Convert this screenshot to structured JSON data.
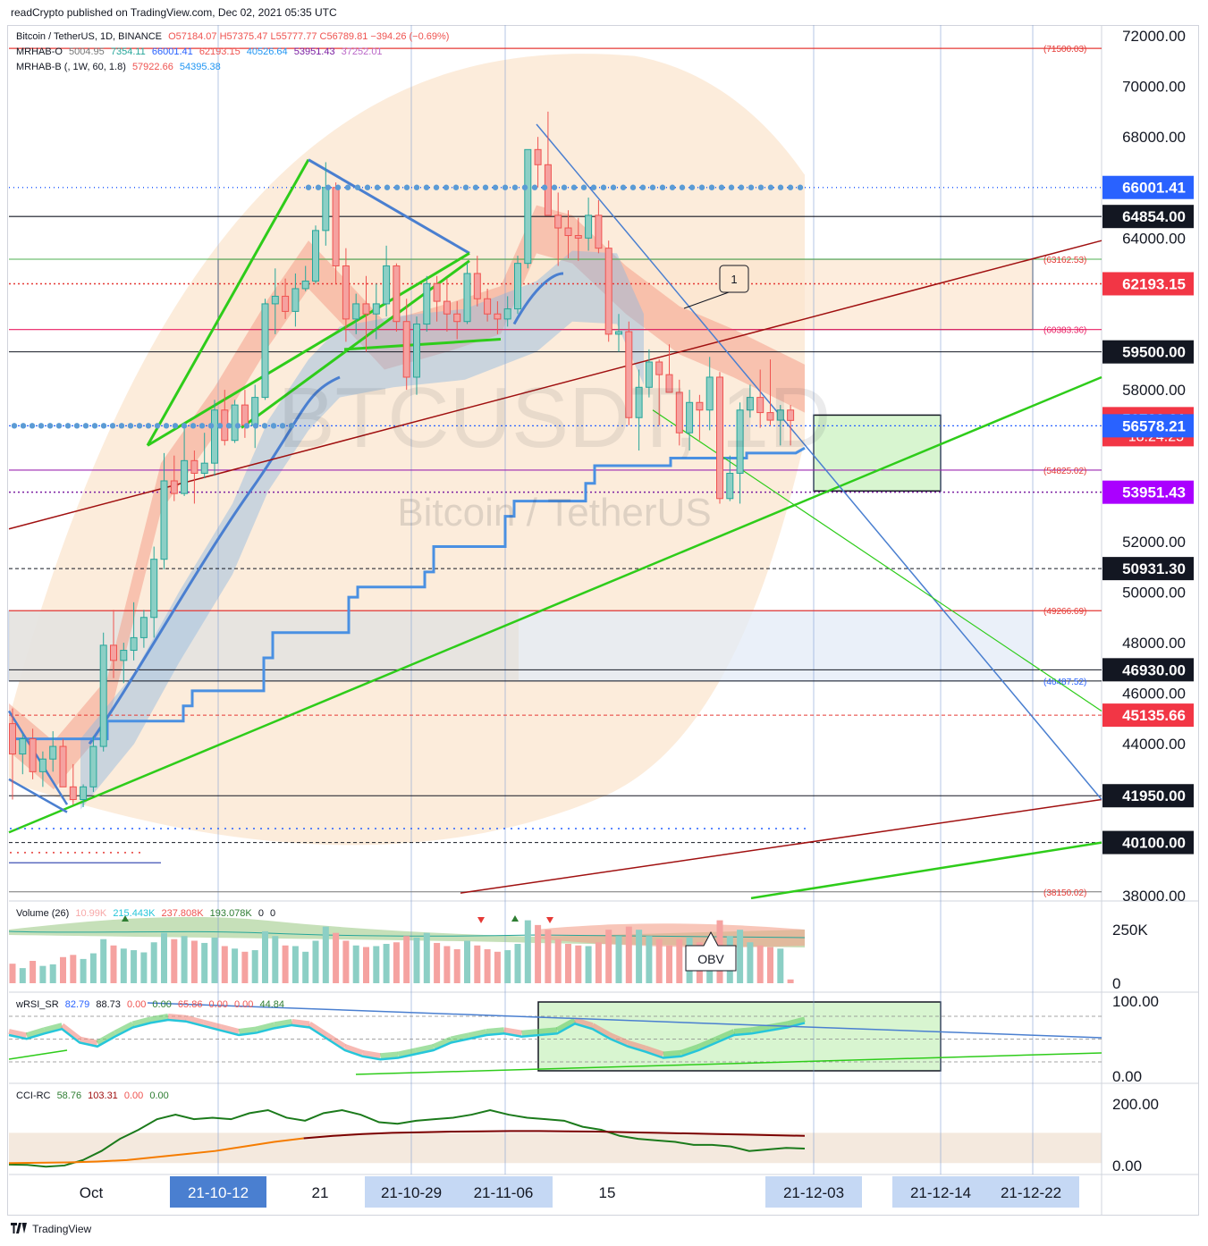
{
  "header": {
    "publisher": "readCrypto published on TradingView.com, Dec 02, 2021 05:35 UTC"
  },
  "footer": {
    "brand": "TradingView"
  },
  "watermark": {
    "ticker": "BTCUSDT, 1D",
    "name": "Bitcoin / TetherUS"
  },
  "legend": {
    "symbol": "Bitcoin / TetherUS, 1D, BINANCE",
    "ohlc": "O57184.07  H57375.47  L55777.77  C56789.81  −394.26 (−0.69%)",
    "mrhab_o_label": "MRHAB-O",
    "mrhab_o_values": [
      "5004.95",
      "7354.11",
      "66001.41",
      "62193.15",
      "40526.64",
      "53951.43",
      "37252.01"
    ],
    "mrhab_b_label": "MRHAB-B (, 1W, 60, 1.8)",
    "mrhab_b_values": [
      "57922.66",
      "54395.38"
    ],
    "volume_label": "Volume (26)",
    "volume_values": [
      "10.99K",
      "215.443K",
      "237.808K",
      "193.078K",
      "0",
      "0"
    ],
    "wrsi_label": "wRSI_SR",
    "wrsi_values": [
      "82.79",
      "88.73",
      "0.00",
      "0.00",
      "65.86",
      "0.00",
      "0.00",
      "44.84"
    ],
    "cci_label": "CCI-RC",
    "cci_values": [
      "58.76",
      "103.31",
      "0.00",
      "0.00"
    ]
  },
  "annotations": {
    "callout_1": "1",
    "callout_obv": "OBV"
  },
  "colors": {
    "up": "#26a69a",
    "down": "#ef5350",
    "green_line": "#2ecc1a",
    "blue_line": "#4a7fd0",
    "dark_red": "#a01010",
    "purple": "#9c27b0",
    "red_tag": "#f23645",
    "dark_tag": "#131722"
  },
  "chart_data": [
    {
      "type": "candlestick",
      "title": "Bitcoin / TetherUS, 1D, BINANCE",
      "y_axis_ticks": [
        72000,
        70000,
        68000,
        64000,
        58000,
        52000,
        50000,
        48000,
        46000,
        44000,
        38000
      ],
      "y_axis_labels": [
        "72000.00",
        "70000.00",
        "68000.00",
        "64000.00",
        "58000.00",
        "52000.00",
        "50000.00",
        "48000.00",
        "46000.00",
        "44000.00",
        "38000.00"
      ],
      "ylim": [
        37900,
        72300
      ],
      "x_axis_labels": [
        "Oct",
        "21-10-12",
        "21",
        "21-10-29",
        "21-11-06",
        "15",
        "21-12-03",
        "21-12-14",
        "21-12-22"
      ],
      "x_axis_highlighted": [
        "21-10-12",
        "21-10-29",
        "21-11-06",
        "21-12-03",
        "21-12-14",
        "21-12-22"
      ],
      "price_tags": [
        {
          "value": 66001.41,
          "label": "66001.41",
          "style": "blue"
        },
        {
          "value": 64854.0,
          "label": "64854.00",
          "style": "dark"
        },
        {
          "value": 62193.15,
          "label": "62193.15",
          "style": "red"
        },
        {
          "value": 59500.0,
          "label": "59500.00",
          "style": "dark"
        },
        {
          "value": 56789.81,
          "label": "56789.81",
          "sub": "18:24:25",
          "style": "red"
        },
        {
          "value": 56578.21,
          "label": "56578.21",
          "style": "blue"
        },
        {
          "value": 53951.43,
          "label": "53951.43",
          "style": "purple"
        },
        {
          "value": 50931.3,
          "label": "50931.30",
          "style": "dark"
        },
        {
          "value": 46930.0,
          "label": "46930.00",
          "style": "dark"
        },
        {
          "value": 45135.66,
          "label": "45135.66",
          "style": "red"
        },
        {
          "value": 41950.0,
          "label": "41950.00",
          "style": "dark"
        },
        {
          "value": 40100.0,
          "label": "40100.00",
          "style": "dark"
        }
      ],
      "level_labels": [
        {
          "value": 71500.03,
          "label": "(71500.03)"
        },
        {
          "value": 63162.53,
          "label": "(63162.53)"
        },
        {
          "value": 60383.36,
          "label": "(60383.36)"
        },
        {
          "value": 54825.02,
          "label": "(54825.02)"
        },
        {
          "value": 49266.69,
          "label": "(49266.69)"
        },
        {
          "value": 46487.52,
          "label": "(46487.52)"
        },
        {
          "value": 38150.02,
          "label": "(38150.02)"
        }
      ],
      "candles": [
        [
          44800,
          45400,
          41800,
          43600
        ],
        [
          43600,
          44400,
          42800,
          44200
        ],
        [
          44200,
          44600,
          42600,
          42900
        ],
        [
          42900,
          43700,
          42300,
          43400
        ],
        [
          43400,
          44500,
          42900,
          43900
        ],
        [
          43900,
          44200,
          42300,
          42300
        ],
        [
          42300,
          43200,
          41600,
          41800
        ],
        [
          41800,
          42400,
          41500,
          42300
        ],
        [
          42300,
          44300,
          42100,
          43900
        ],
        [
          43900,
          48400,
          43700,
          47900
        ],
        [
          47900,
          49300,
          46600,
          47300
        ],
        [
          47300,
          48000,
          46400,
          47700
        ],
        [
          47700,
          49600,
          47300,
          48200
        ],
        [
          48200,
          49300,
          47800,
          49000
        ],
        [
          49000,
          51800,
          48200,
          51300
        ],
        [
          51300,
          55500,
          50900,
          54400
        ],
        [
          54400,
          55400,
          53600,
          53900
        ],
        [
          53900,
          56600,
          53800,
          55200
        ],
        [
          55200,
          55600,
          53500,
          54700
        ],
        [
          54700,
          56300,
          54500,
          55100
        ],
        [
          55100,
          57600,
          54600,
          57200
        ],
        [
          57200,
          58000,
          55800,
          56000
        ],
        [
          56000,
          57600,
          55900,
          57400
        ],
        [
          57400,
          58000,
          56100,
          56600
        ],
        [
          56600,
          58200,
          55700,
          57700
        ],
        [
          57700,
          61600,
          57600,
          61400
        ],
        [
          61400,
          62800,
          60200,
          61700
        ],
        [
          61700,
          62400,
          60800,
          61100
        ],
        [
          61100,
          62600,
          60500,
          62000
        ],
        [
          62000,
          62900,
          61900,
          62300
        ],
        [
          62300,
          64500,
          62200,
          64300
        ],
        [
          64300,
          67000,
          63700,
          66000
        ],
        [
          66000,
          66200,
          62200,
          62900
        ],
        [
          62900,
          63600,
          59900,
          60800
        ],
        [
          60800,
          61800,
          60200,
          61400
        ],
        [
          61400,
          62500,
          59500,
          61000
        ],
        [
          61000,
          62200,
          60000,
          61400
        ],
        [
          61400,
          63700,
          60900,
          62900
        ],
        [
          62900,
          63000,
          60300,
          60700
        ],
        [
          60700,
          61600,
          58000,
          58500
        ],
        [
          58500,
          60900,
          57800,
          60600
        ],
        [
          60600,
          62500,
          60300,
          62200
        ],
        [
          62200,
          62500,
          60700,
          61500
        ],
        [
          61500,
          62400,
          60300,
          61000
        ],
        [
          61000,
          61500,
          60000,
          60700
        ],
        [
          60700,
          63000,
          60600,
          62600
        ],
        [
          62600,
          63300,
          61300,
          61600
        ],
        [
          61600,
          62000,
          60700,
          61000
        ],
        [
          61000,
          61500,
          60200,
          60800
        ],
        [
          60800,
          61700,
          60500,
          61200
        ],
        [
          61200,
          63300,
          61000,
          63000
        ],
        [
          63000,
          67500,
          62800,
          67500
        ],
        [
          67500,
          68000,
          66000,
          66900
        ],
        [
          66900,
          69000,
          64900,
          64900
        ],
        [
          64900,
          65800,
          62900,
          64400
        ],
        [
          64400,
          65100,
          63200,
          64100
        ],
        [
          64100,
          64800,
          63100,
          64000
        ],
        [
          64000,
          65600,
          63500,
          64900
        ],
        [
          64900,
          65500,
          63400,
          63600
        ],
        [
          63600,
          63900,
          59900,
          60200
        ],
        [
          60200,
          61000,
          59500,
          60300
        ],
        [
          60300,
          60700,
          56600,
          56900
        ],
        [
          56900,
          58800,
          55600,
          58100
        ],
        [
          58100,
          59600,
          57700,
          59100
        ],
        [
          59100,
          59200,
          56600,
          58600
        ],
        [
          58600,
          59800,
          57900,
          57900
        ],
        [
          57900,
          58400,
          55800,
          56300
        ],
        [
          56300,
          58000,
          55600,
          57500
        ],
        [
          57500,
          57800,
          56000,
          57200
        ],
        [
          57200,
          59300,
          56400,
          58500
        ],
        [
          58500,
          58700,
          53500,
          53700
        ],
        [
          53700,
          55400,
          53600,
          54700
        ],
        [
          54700,
          57500,
          53500,
          57200
        ],
        [
          57200,
          58200,
          56900,
          57700
        ],
        [
          57700,
          58800,
          56500,
          57100
        ],
        [
          57100,
          59200,
          56600,
          56800
        ],
        [
          56800,
          57400,
          55800,
          57200
        ],
        [
          57200,
          57400,
          55800,
          56789.81
        ]
      ]
    },
    {
      "type": "bar",
      "title": "Volume (26)",
      "y_axis_labels": [
        "250K",
        "0"
      ],
      "values": [
        62,
        48,
        71,
        55,
        60,
        83,
        90,
        77,
        95,
        140,
        120,
        110,
        105,
        98,
        130,
        160,
        140,
        150,
        135,
        128,
        145,
        118,
        110,
        100,
        105,
        165,
        150,
        120,
        118,
        100,
        135,
        180,
        160,
        135,
        120,
        115,
        118,
        125,
        130,
        150,
        145,
        160,
        128,
        118,
        108,
        135,
        120,
        108,
        100,
        105,
        125,
        200,
        185,
        170,
        140,
        125,
        120,
        118,
        130,
        170,
        150,
        180,
        170,
        150,
        140,
        120,
        140,
        145,
        130,
        120,
        200,
        150,
        170,
        130,
        120,
        115,
        110,
        12
      ]
    },
    {
      "type": "line",
      "title": "wRSI_SR",
      "y_axis_labels": [
        "100.00",
        "0.00"
      ],
      "ylim": [
        0,
        100
      ],
      "series": [
        {
          "name": "",
          "values": [
            60,
            55,
            62,
            68,
            50,
            45,
            58,
            70,
            76,
            80,
            78,
            72,
            66,
            60,
            63,
            69,
            73,
            70,
            55,
            40,
            32,
            28,
            30,
            35,
            40,
            50,
            55,
            60,
            62,
            58,
            60,
            62,
            75,
            68,
            55,
            45,
            38,
            30,
            32,
            40,
            50,
            60,
            62,
            66,
            70,
            76
          ]
        }
      ]
    },
    {
      "type": "line",
      "title": "CCI-RC",
      "y_axis_labels": [
        "200.00",
        "0.00"
      ],
      "ylim": [
        -20,
        240
      ],
      "series": [
        {
          "name": "",
          "values": [
            -5,
            -6,
            -12,
            -8,
            10,
            40,
            80,
            110,
            145,
            160,
            145,
            150,
            145,
            165,
            175,
            150,
            140,
            165,
            175,
            160,
            135,
            130,
            140,
            145,
            150,
            160,
            175,
            160,
            150,
            145,
            140,
            120,
            110,
            90,
            80,
            75,
            70,
            60,
            60,
            55,
            40,
            45,
            50,
            48
          ]
        },
        {
          "name": "",
          "values": [
            0,
            1,
            2,
            5,
            10,
            20,
            30,
            40,
            55,
            70,
            82,
            90,
            96,
            100,
            102,
            104,
            105,
            106,
            106,
            105,
            104,
            102,
            100,
            98,
            96,
            94,
            92,
            90
          ]
        }
      ]
    }
  ]
}
